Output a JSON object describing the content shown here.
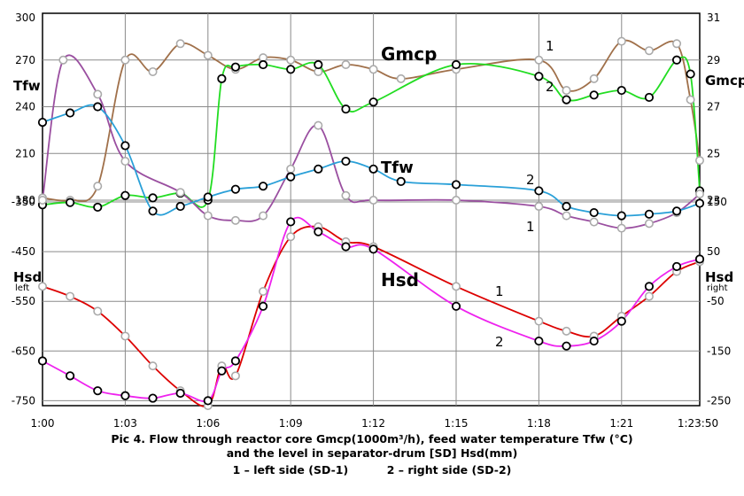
{
  "chart_data": {
    "type": "line",
    "time_ticks": [
      "1:00",
      "1:03",
      "1:06",
      "1:09",
      "1:12",
      "1:15",
      "1:18",
      "1:21",
      "1:23:50"
    ],
    "axes": {
      "tfw": {
        "title": "Tfw",
        "ticks": [
          300,
          270,
          240,
          210,
          180
        ],
        "ylim": [
          180,
          300
        ]
      },
      "gmcp": {
        "title": "Gmcp",
        "ticks": [
          31,
          29,
          27,
          25,
          23
        ],
        "ylim": [
          23,
          31
        ]
      },
      "hsd_left": {
        "title": "Hsd",
        "subtitle": "left",
        "ticks": [
          -350,
          -450,
          -550,
          -650,
          -750
        ],
        "ylim": [
          -760,
          -350
        ]
      },
      "hsd_right": {
        "title": "Hsd",
        "subtitle": "right",
        "ticks": [
          150,
          50,
          -50,
          -150,
          -250
        ],
        "ylim": [
          -260,
          150
        ]
      }
    },
    "series": [
      {
        "name": "Gmcp 1",
        "label": "1",
        "axis": "gmcp",
        "color": "#a0704a",
        "points": [
          [
            "1:00",
            23.1
          ],
          [
            "1:01",
            23.0
          ],
          [
            "1:02",
            23.6
          ],
          [
            "1:03",
            29.0
          ],
          [
            "1:04",
            28.5
          ],
          [
            "1:05",
            29.7
          ],
          [
            "1:06",
            29.2
          ],
          [
            "1:07",
            28.6
          ],
          [
            "1:08",
            29.1
          ],
          [
            "1:09",
            29.0
          ],
          [
            "1:10",
            28.5
          ],
          [
            "1:11",
            28.8
          ],
          [
            "1:12",
            28.6
          ],
          [
            "1:13",
            28.2
          ],
          [
            "1:15",
            28.6
          ],
          [
            "1:18",
            29.0
          ],
          [
            "1:19",
            27.7
          ],
          [
            "1:20",
            28.2
          ],
          [
            "1:21",
            29.8
          ],
          [
            "1:22",
            29.4
          ],
          [
            "1:23",
            29.7
          ],
          [
            "1:23:30",
            27.3
          ],
          [
            "1:23:50",
            24.7
          ]
        ]
      },
      {
        "name": "Gmcp 2",
        "label": "2",
        "axis": "gmcp",
        "color": "#22dd22",
        "points": [
          [
            "1:00",
            22.8
          ],
          [
            "1:01",
            22.9
          ],
          [
            "1:02",
            22.7
          ],
          [
            "1:03",
            23.2
          ],
          [
            "1:04",
            23.1
          ],
          [
            "1:05",
            23.3
          ],
          [
            "1:06",
            23.0
          ],
          [
            "1:06:30",
            28.2
          ],
          [
            "1:07",
            28.7
          ],
          [
            "1:08",
            28.8
          ],
          [
            "1:09",
            28.6
          ],
          [
            "1:10",
            28.8
          ],
          [
            "1:11",
            26.9
          ],
          [
            "1:12",
            27.2
          ],
          [
            "1:15",
            28.8
          ],
          [
            "1:18",
            28.3
          ],
          [
            "1:19",
            27.3
          ],
          [
            "1:20",
            27.5
          ],
          [
            "1:21",
            27.7
          ],
          [
            "1:22",
            27.4
          ],
          [
            "1:23",
            29.0
          ],
          [
            "1:23:30",
            28.4
          ],
          [
            "1:23:50",
            23.4
          ]
        ]
      },
      {
        "name": "Tfw 1",
        "label": "1",
        "axis": "tfw",
        "color": "#9a4fa0",
        "points": [
          [
            "1:00",
            180
          ],
          [
            "1:00:45",
            270
          ],
          [
            "1:02",
            248
          ],
          [
            "1:03",
            205
          ],
          [
            "1:05",
            185
          ],
          [
            "1:06",
            170
          ],
          [
            "1:07",
            167
          ],
          [
            "1:08",
            170
          ],
          [
            "1:09",
            200
          ],
          [
            "1:10",
            228
          ],
          [
            "1:11",
            183
          ],
          [
            "1:12",
            180
          ],
          [
            "1:15",
            180
          ],
          [
            "1:18",
            176
          ],
          [
            "1:19",
            170
          ],
          [
            "1:20",
            166
          ],
          [
            "1:21",
            162
          ],
          [
            "1:22",
            165
          ],
          [
            "1:23",
            172
          ],
          [
            "1:23:50",
            184
          ]
        ]
      },
      {
        "name": "Tfw 2",
        "label": "2",
        "axis": "tfw",
        "color": "#2aa0d8",
        "points": [
          [
            "1:00",
            230
          ],
          [
            "1:01",
            236
          ],
          [
            "1:02",
            240
          ],
          [
            "1:03",
            215
          ],
          [
            "1:04",
            173
          ],
          [
            "1:05",
            176
          ],
          [
            "1:06",
            182
          ],
          [
            "1:07",
            187
          ],
          [
            "1:08",
            189
          ],
          [
            "1:09",
            195
          ],
          [
            "1:10",
            200
          ],
          [
            "1:11",
            205
          ],
          [
            "1:12",
            200
          ],
          [
            "1:13",
            192
          ],
          [
            "1:15",
            190
          ],
          [
            "1:18",
            186
          ],
          [
            "1:19",
            176
          ],
          [
            "1:20",
            172
          ],
          [
            "1:21",
            170
          ],
          [
            "1:22",
            171
          ],
          [
            "1:23",
            173
          ],
          [
            "1:23:50",
            178
          ]
        ]
      },
      {
        "name": "Hsd 1",
        "label": "1",
        "axis": "hsd_left",
        "color": "#dd0000",
        "points": [
          [
            "1:00",
            -520
          ],
          [
            "1:01",
            -540
          ],
          [
            "1:02",
            -570
          ],
          [
            "1:03",
            -620
          ],
          [
            "1:04",
            -680
          ],
          [
            "1:05",
            -730
          ],
          [
            "1:06",
            -760
          ],
          [
            "1:06:30",
            -680
          ],
          [
            "1:07",
            -700
          ],
          [
            "1:08",
            -530
          ],
          [
            "1:09",
            -420
          ],
          [
            "1:10",
            -400
          ],
          [
            "1:11",
            -430
          ],
          [
            "1:12",
            -440
          ],
          [
            "1:15",
            -520
          ],
          [
            "1:18",
            -590
          ],
          [
            "1:19",
            -610
          ],
          [
            "1:20",
            -620
          ],
          [
            "1:21",
            -580
          ],
          [
            "1:22",
            -540
          ],
          [
            "1:23",
            -490
          ],
          [
            "1:23:50",
            -470
          ]
        ]
      },
      {
        "name": "Hsd 2",
        "label": "2",
        "axis": "hsd_left",
        "color": "#ee22ee",
        "points": [
          [
            "1:00",
            -670
          ],
          [
            "1:01",
            -700
          ],
          [
            "1:02",
            -730
          ],
          [
            "1:03",
            -740
          ],
          [
            "1:04",
            -745
          ],
          [
            "1:05",
            -735
          ],
          [
            "1:06",
            -750
          ],
          [
            "1:06:30",
            -690
          ],
          [
            "1:07",
            -670
          ],
          [
            "1:08",
            -560
          ],
          [
            "1:09",
            -390
          ],
          [
            "1:10",
            -410
          ],
          [
            "1:11",
            -440
          ],
          [
            "1:12",
            -445
          ],
          [
            "1:15",
            -560
          ],
          [
            "1:18",
            -630
          ],
          [
            "1:19",
            -640
          ],
          [
            "1:20",
            -630
          ],
          [
            "1:21",
            -590
          ],
          [
            "1:22",
            -520
          ],
          [
            "1:23",
            -480
          ],
          [
            "1:23:50",
            -465
          ]
        ]
      }
    ],
    "caption": [
      "Pic 4. Flow through reactor core Gmcp(1000m³/h), feed water temperature Tfw (°C)",
      "and the level in separator-drum [SD] Hsd(mm)",
      "1 – left side (SD-1)          2 – right side (SD-2)"
    ]
  }
}
